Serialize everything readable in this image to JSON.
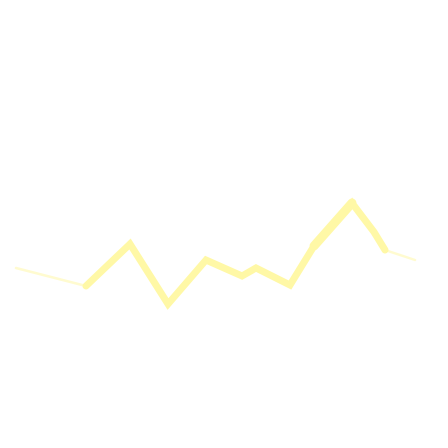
{
  "graphic": {
    "icon": "zigzag-stroke",
    "colors": {
      "background": "#ffffff",
      "stroke": "#fff8a6",
      "stroke_light": "#fffbd0"
    }
  }
}
